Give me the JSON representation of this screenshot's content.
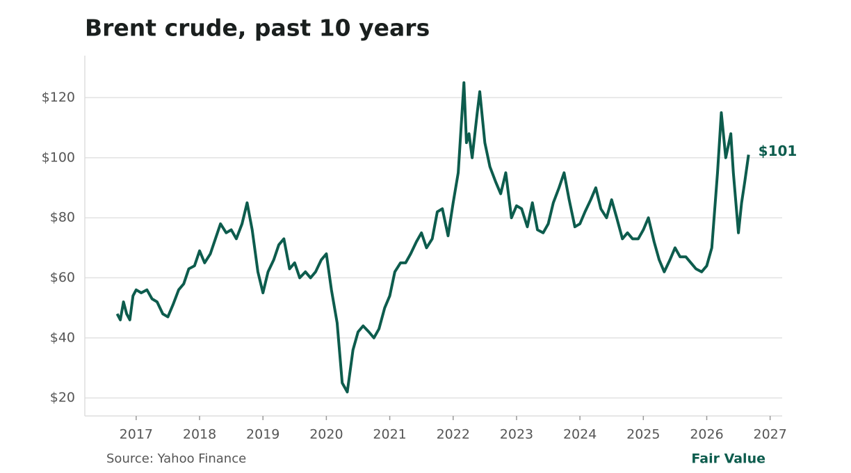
{
  "chart_data": {
    "type": "line",
    "title": "Brent crude, past 10 years",
    "source": "Source: Yahoo Finance",
    "brand": "Fair Value",
    "x": [
      2016.7,
      2016.75,
      2016.8,
      2016.85,
      2016.9,
      2016.95,
      2017.0,
      2017.08,
      2017.17,
      2017.25,
      2017.33,
      2017.42,
      2017.5,
      2017.58,
      2017.67,
      2017.75,
      2017.83,
      2017.92,
      2018.0,
      2018.08,
      2018.17,
      2018.25,
      2018.33,
      2018.42,
      2018.5,
      2018.58,
      2018.67,
      2018.75,
      2018.83,
      2018.92,
      2019.0,
      2019.08,
      2019.17,
      2019.25,
      2019.33,
      2019.42,
      2019.5,
      2019.58,
      2019.67,
      2019.75,
      2019.83,
      2019.92,
      2020.0,
      2020.08,
      2020.17,
      2020.25,
      2020.33,
      2020.42,
      2020.5,
      2020.58,
      2020.67,
      2020.75,
      2020.83,
      2020.92,
      2021.0,
      2021.08,
      2021.17,
      2021.25,
      2021.33,
      2021.42,
      2021.5,
      2021.58,
      2021.67,
      2021.75,
      2021.83,
      2021.92,
      2022.0,
      2022.08,
      2022.17,
      2022.21,
      2022.25,
      2022.3,
      2022.38,
      2022.42,
      2022.5,
      2022.58,
      2022.67,
      2022.75,
      2022.83,
      2022.92,
      2023.0,
      2023.08,
      2023.17,
      2023.25,
      2023.33,
      2023.42,
      2023.5,
      2023.58,
      2023.67,
      2023.75,
      2023.83,
      2023.92,
      2024.0,
      2024.08,
      2024.17,
      2024.25,
      2024.33,
      2024.42,
      2024.5,
      2024.58,
      2024.67,
      2024.75,
      2024.83,
      2024.92,
      2025.0,
      2025.08,
      2025.17,
      2025.25,
      2025.33,
      2025.42,
      2025.5,
      2025.58,
      2025.67,
      2025.75,
      2025.83,
      2025.92,
      2026.0,
      2026.08,
      2026.17,
      2026.23,
      2026.3,
      2026.38,
      2026.42,
      2026.5,
      2026.55,
      2026.6,
      2026.66
    ],
    "series": [
      {
        "name": "Brent crude",
        "color": "#0d5c4d",
        "values": [
          48,
          46,
          52,
          48,
          46,
          54,
          56,
          55,
          56,
          53,
          52,
          48,
          47,
          51,
          56,
          58,
          63,
          64,
          69,
          65,
          68,
          73,
          78,
          75,
          76,
          73,
          78,
          85,
          76,
          62,
          55,
          62,
          66,
          71,
          73,
          63,
          65,
          60,
          62,
          60,
          62,
          66,
          68,
          56,
          45,
          25,
          22,
          36,
          42,
          44,
          42,
          40,
          43,
          50,
          54,
          62,
          65,
          65,
          68,
          72,
          75,
          70,
          73,
          82,
          83,
          74,
          85,
          95,
          125,
          105,
          108,
          100,
          115,
          122,
          105,
          97,
          92,
          88,
          95,
          80,
          84,
          83,
          77,
          85,
          76,
          75,
          78,
          85,
          90,
          95,
          86,
          77,
          78,
          82,
          86,
          90,
          83,
          80,
          86,
          80,
          73,
          75,
          73,
          73,
          76,
          80,
          72,
          66,
          62,
          66,
          70,
          67,
          67,
          65,
          63,
          62,
          64,
          70,
          95,
          115,
          100,
          108,
          95,
          75,
          85,
          92,
          101
        ]
      }
    ],
    "annotations": [
      {
        "text": "$101",
        "x": 2026.66,
        "y": 101
      }
    ],
    "xlim": [
      2016.19,
      2027.19
    ],
    "xticks": [
      2017,
      2018,
      2019,
      2020,
      2021,
      2022,
      2023,
      2024,
      2025,
      2026,
      2027
    ],
    "ylim": [
      14,
      134
    ],
    "yticks": [
      {
        "value": 20,
        "label": "$20"
      },
      {
        "value": 40,
        "label": "$40"
      },
      {
        "value": 60,
        "label": "$60"
      },
      {
        "value": 80,
        "label": "$80"
      },
      {
        "value": 100,
        "label": "$100"
      },
      {
        "value": 120,
        "label": "$120"
      }
    ],
    "grid": true
  }
}
